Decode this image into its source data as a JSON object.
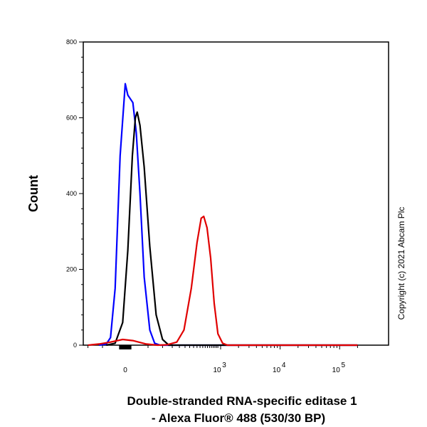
{
  "chart_data": {
    "type": "line",
    "xlabel_line1": "Double-stranded RNA-specific editase 1",
    "xlabel_line2": "- Alexa Fluor® 488 (530/30 BP)",
    "ylabel": "Count",
    "x_scale": "biexponential",
    "ylim": [
      0,
      800
    ],
    "yticks": [
      0,
      200,
      400,
      600,
      800
    ],
    "xticks": [
      {
        "value": 0,
        "label": "0"
      },
      {
        "value": 1000,
        "base": "10",
        "exp": "3"
      },
      {
        "value": 10000,
        "base": "10",
        "exp": "4"
      },
      {
        "value": 100000,
        "base": "10",
        "exp": "5"
      }
    ],
    "annotation": "Copyright (c) 2021 Abcam Plc",
    "series": [
      {
        "color": "#0000ff",
        "points": [
          [
            -60,
            0
          ],
          [
            -40,
            3
          ],
          [
            -30,
            20
          ],
          [
            -20,
            150
          ],
          [
            -10,
            500
          ],
          [
            0,
            690
          ],
          [
            5,
            660
          ],
          [
            15,
            640
          ],
          [
            22,
            560
          ],
          [
            30,
            400
          ],
          [
            40,
            180
          ],
          [
            55,
            40
          ],
          [
            70,
            5
          ],
          [
            90,
            0
          ],
          [
            200000,
            0
          ]
        ]
      },
      {
        "color": "#000000",
        "points": [
          [
            -40,
            0
          ],
          [
            -20,
            5
          ],
          [
            -5,
            60
          ],
          [
            5,
            250
          ],
          [
            14,
            500
          ],
          [
            20,
            600
          ],
          [
            24,
            615
          ],
          [
            30,
            580
          ],
          [
            40,
            470
          ],
          [
            55,
            260
          ],
          [
            75,
            80
          ],
          [
            100,
            15
          ],
          [
            130,
            0
          ],
          [
            200000,
            0
          ]
        ]
      },
      {
        "color": "#e00000",
        "points": [
          [
            -100,
            0
          ],
          [
            -60,
            3
          ],
          [
            -30,
            8
          ],
          [
            -5,
            15
          ],
          [
            15,
            12
          ],
          [
            45,
            3
          ],
          [
            80,
            0
          ],
          [
            120,
            1
          ],
          [
            180,
            8
          ],
          [
            240,
            40
          ],
          [
            320,
            150
          ],
          [
            400,
            270
          ],
          [
            470,
            335
          ],
          [
            520,
            340
          ],
          [
            590,
            310
          ],
          [
            680,
            230
          ],
          [
            780,
            110
          ],
          [
            900,
            30
          ],
          [
            1080,
            5
          ],
          [
            1300,
            0
          ],
          [
            200000,
            0
          ]
        ]
      }
    ]
  }
}
